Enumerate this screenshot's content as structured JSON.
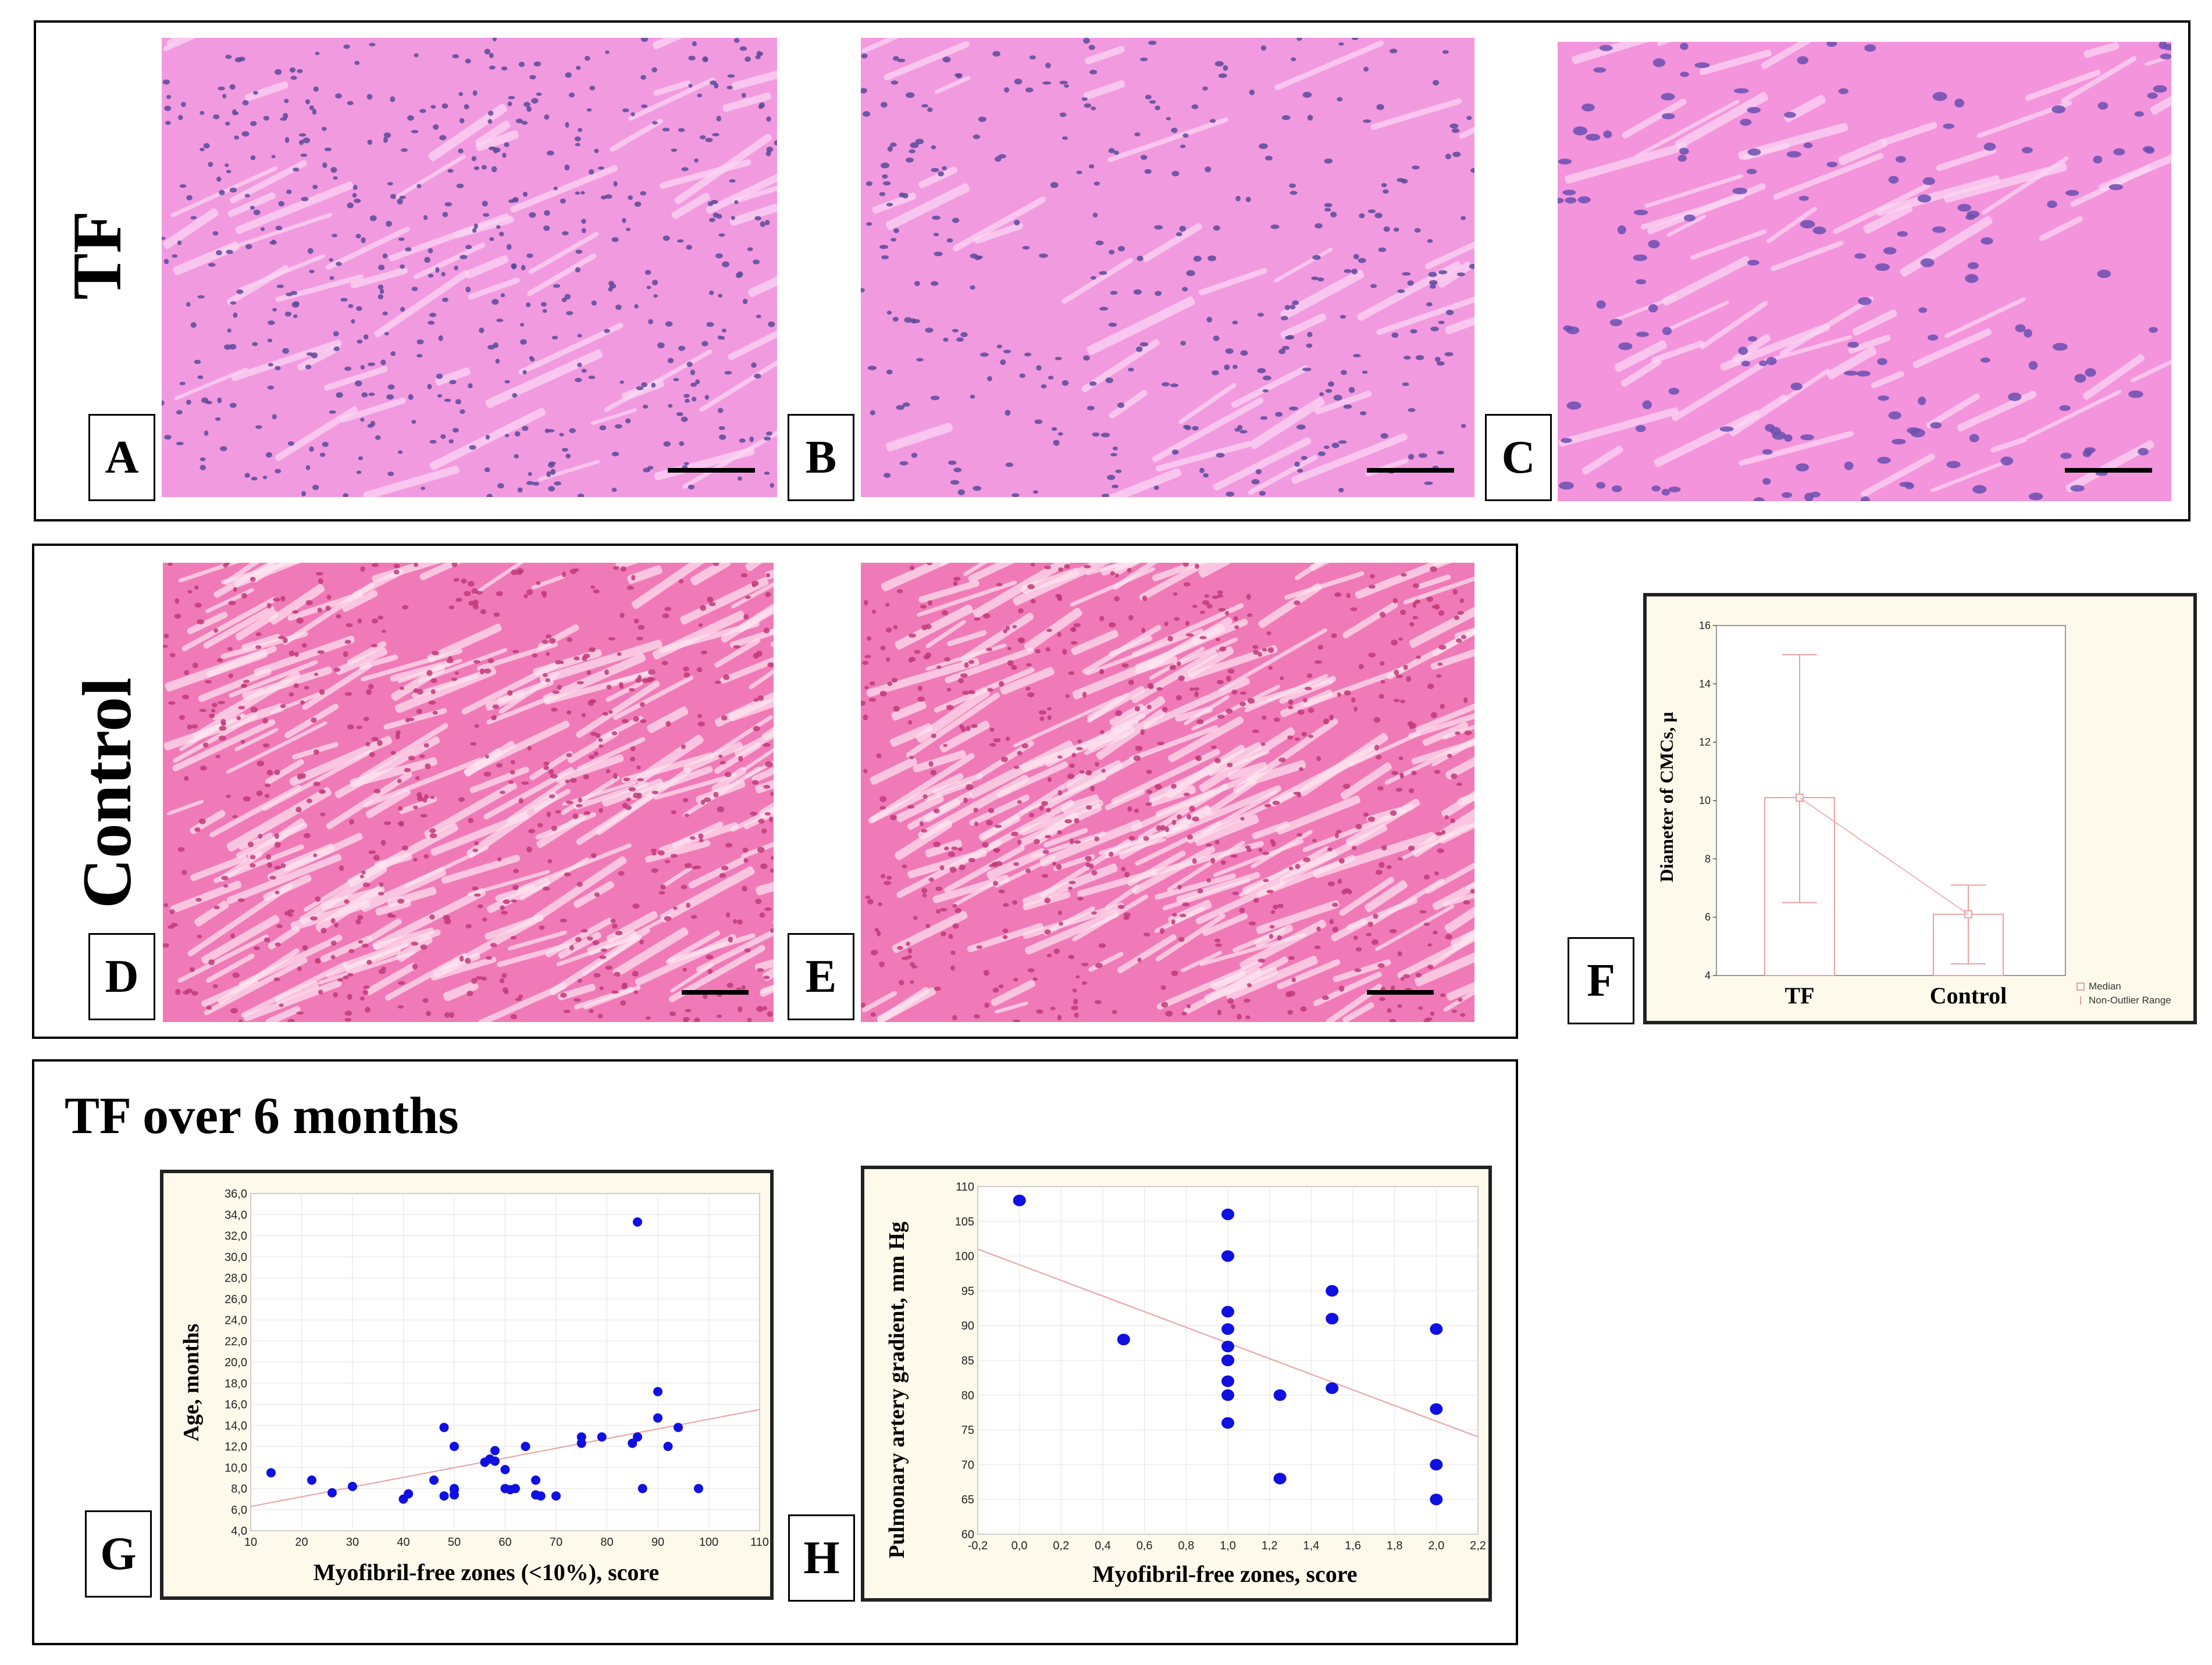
{
  "groups": {
    "tf": "TF",
    "control": "Control",
    "tf_over_6_months": "TF over 6 months"
  },
  "panel_labels": {
    "a": "A",
    "b": "B",
    "c": "C",
    "d": "D",
    "e": "E",
    "f": "F",
    "g": "G",
    "h": "H"
  },
  "colors": {
    "he_pink_tf": "#f29ae0",
    "he_pink_control": "#f07ab8",
    "nucleus": "#5a4a9a",
    "plot_background": "#fdfaec",
    "point_blue": "#1010e0",
    "regression_line": "#e8a0a0",
    "boxplot": "#e8a0a0"
  },
  "chart_data": [
    {
      "id": "F",
      "type": "boxplot",
      "ylabel": "Diameter of CMCs, µ",
      "categories": [
        "TF",
        "Control"
      ],
      "medians": [
        10.1,
        6.1
      ],
      "box": [
        [
          4.0,
          10.1
        ],
        [
          4.0,
          6.1
        ]
      ],
      "non_outlier_range": [
        [
          6.5,
          15.0
        ],
        [
          4.4,
          7.1
        ]
      ],
      "ylim": [
        4,
        16
      ],
      "yticks": [
        "4",
        "6",
        "8",
        "10",
        "12",
        "14",
        "16"
      ],
      "legend": [
        "Median",
        "Non-Outlier Range"
      ]
    },
    {
      "id": "G",
      "type": "scatter",
      "xlabel": "Myofibril-free zones (<10%), score",
      "ylabel": "Age, months",
      "xlim": [
        10,
        110
      ],
      "ylim": [
        4,
        36
      ],
      "xticks": [
        "10",
        "20",
        "30",
        "40",
        "50",
        "60",
        "70",
        "80",
        "90",
        "100",
        "110"
      ],
      "yticks": [
        "4,0",
        "6,0",
        "8,0",
        "10,0",
        "12,0",
        "14,0",
        "16,0",
        "18,0",
        "20,0",
        "22,0",
        "24,0",
        "26,0",
        "28,0",
        "30,0",
        "32,0",
        "34,0",
        "36,0"
      ],
      "x": [
        14,
        22,
        26,
        30,
        40,
        41,
        46,
        48,
        48,
        50,
        50,
        50,
        50,
        56,
        57,
        58,
        58,
        60,
        60,
        61,
        62,
        64,
        66,
        66,
        67,
        70,
        75,
        75,
        79,
        85,
        86,
        86,
        87,
        90,
        90,
        92,
        94,
        98
      ],
      "y": [
        9.5,
        8.8,
        7.6,
        8.2,
        7.0,
        7.5,
        8.8,
        13.8,
        7.3,
        12.0,
        8.0,
        7.4,
        7.9,
        10.5,
        10.8,
        11.6,
        10.6,
        9.8,
        8.0,
        7.9,
        8.0,
        12.0,
        8.8,
        7.4,
        7.3,
        7.3,
        12.9,
        12.3,
        12.9,
        12.3,
        12.9,
        33.3,
        8.0,
        17.2,
        14.7,
        12.0,
        13.8,
        8.0
      ],
      "trend": [
        [
          10,
          6.3
        ],
        [
          110,
          15.5
        ]
      ]
    },
    {
      "id": "H",
      "type": "scatter",
      "xlabel": "Myofibril-free zones, score",
      "ylabel": "Pulmonary artery gradient, mm Hg",
      "xlim": [
        -0.2,
        2.2
      ],
      "ylim": [
        60,
        110
      ],
      "xticks": [
        "-0,2",
        "0,0",
        "0,2",
        "0,4",
        "0,6",
        "0,8",
        "1,0",
        "1,2",
        "1,4",
        "1,6",
        "1,8",
        "2,0",
        "2,2"
      ],
      "yticks": [
        "60",
        "65",
        "70",
        "75",
        "80",
        "85",
        "90",
        "95",
        "100",
        "105",
        "110"
      ],
      "x": [
        0.0,
        0.5,
        1.0,
        1.0,
        1.0,
        1.0,
        1.0,
        1.0,
        1.0,
        1.0,
        1.0,
        1.0,
        1.25,
        1.25,
        1.5,
        1.5,
        1.5,
        2.0,
        2.0,
        2.0,
        2.0
      ],
      "y": [
        108,
        88,
        106,
        100,
        92,
        89.5,
        87,
        85,
        85,
        82,
        80,
        76,
        80,
        68,
        95,
        91,
        81,
        89.5,
        78,
        70,
        65
      ],
      "trend": [
        [
          -0.2,
          101
        ],
        [
          2.2,
          74
        ]
      ]
    }
  ]
}
